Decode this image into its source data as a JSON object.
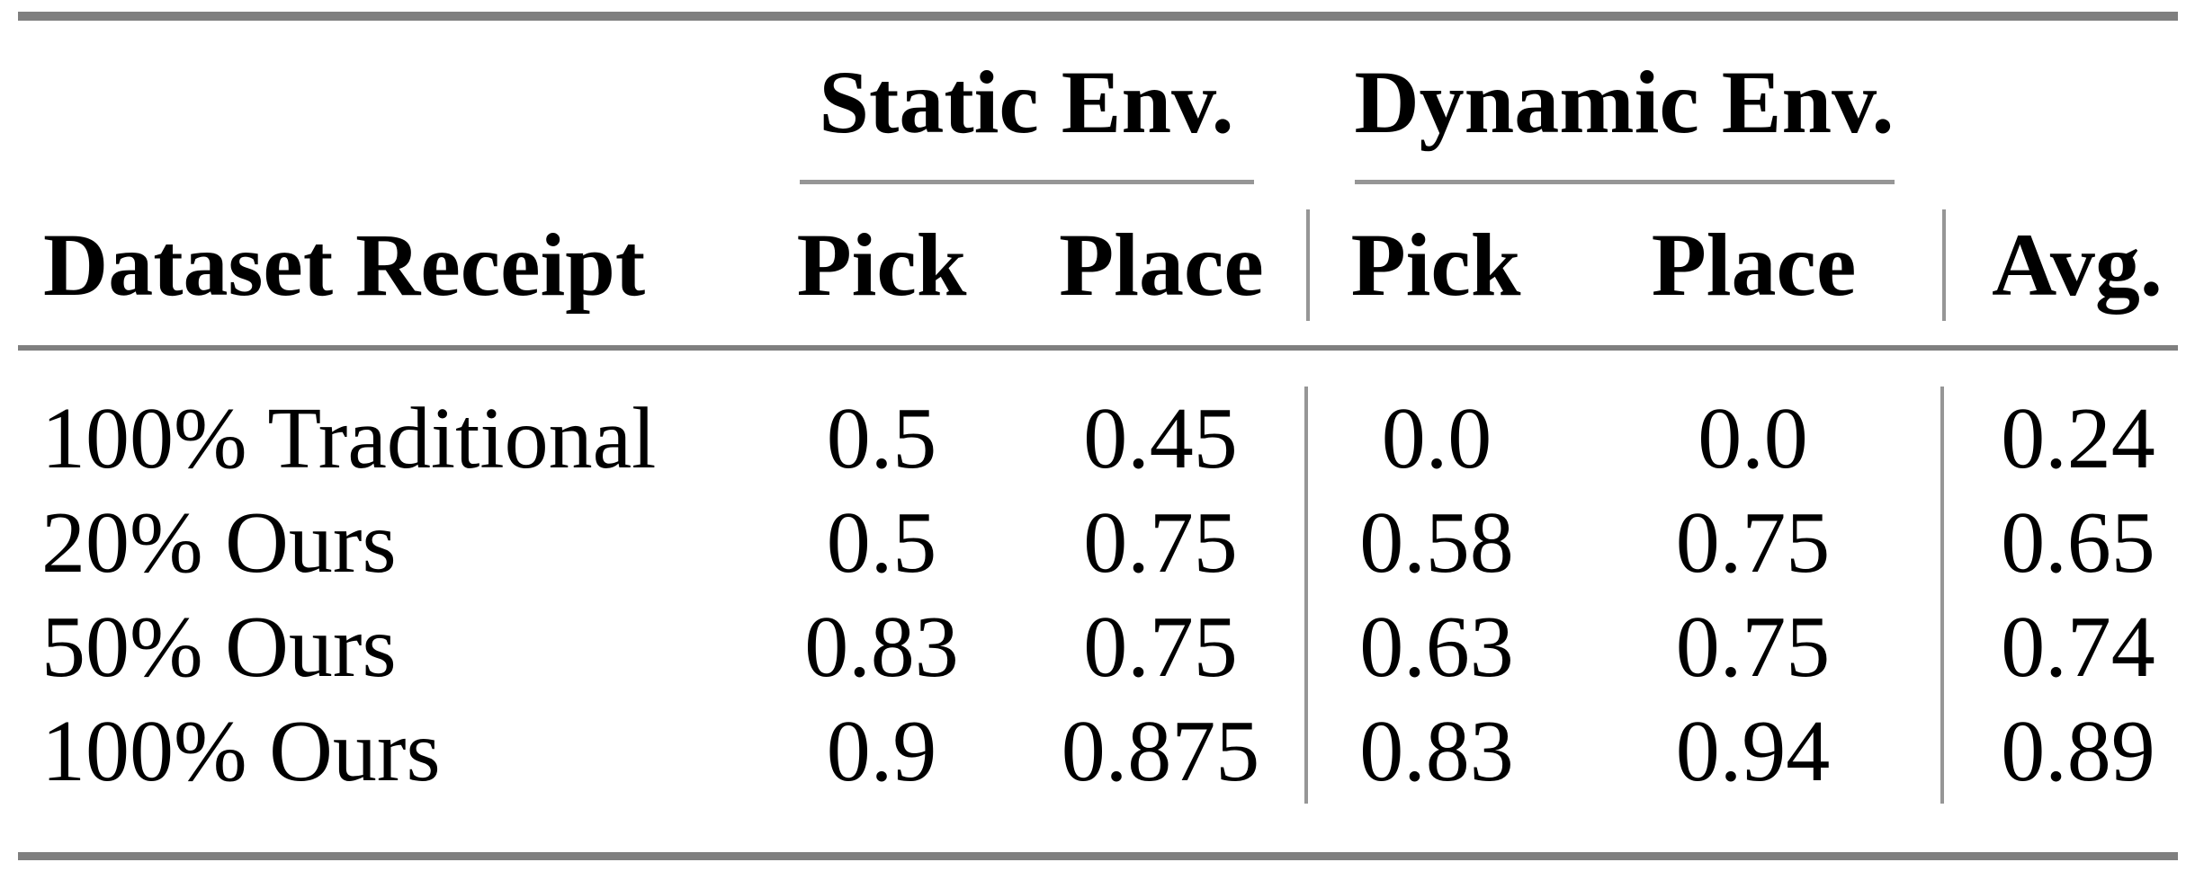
{
  "table": {
    "header": {
      "row_label": "Dataset Receipt",
      "groups": [
        {
          "label": "Static Env.",
          "cols": [
            "Pick",
            "Place"
          ]
        },
        {
          "label": "Dynamic Env.",
          "cols": [
            "Pick",
            "Place"
          ]
        }
      ],
      "avg": "Avg."
    },
    "rows": [
      {
        "label": "100% Traditional",
        "values": [
          "0.5",
          "0.45",
          "0.0",
          "0.0",
          "0.24"
        ]
      },
      {
        "label": "20% Ours",
        "values": [
          "0.5",
          "0.75",
          "0.58",
          "0.75",
          "0.65"
        ]
      },
      {
        "label": "50% Ours",
        "values": [
          "0.83",
          "0.75",
          "0.63",
          "0.75",
          "0.74"
        ]
      },
      {
        "label": "100% Ours",
        "values": [
          "0.9",
          "0.875",
          "0.83",
          "0.94",
          "0.89"
        ]
      }
    ],
    "colors": {
      "rule_heavy": "#7f7f7f",
      "rule_light": "#969696",
      "text": "#000000",
      "background": "#ffffff"
    }
  },
  "chart_data": {
    "type": "table",
    "columns": [
      "Dataset Receipt",
      "Static Env. Pick",
      "Static Env. Place",
      "Dynamic Env. Pick",
      "Dynamic Env. Place",
      "Avg."
    ],
    "rows": [
      [
        "100% Traditional",
        0.5,
        0.45,
        0.0,
        0.0,
        0.24
      ],
      [
        "20% Ours",
        0.5,
        0.75,
        0.58,
        0.75,
        0.65
      ],
      [
        "50% Ours",
        0.83,
        0.75,
        0.63,
        0.75,
        0.74
      ],
      [
        "100% Ours",
        0.9,
        0.875,
        0.83,
        0.94,
        0.89
      ]
    ]
  }
}
